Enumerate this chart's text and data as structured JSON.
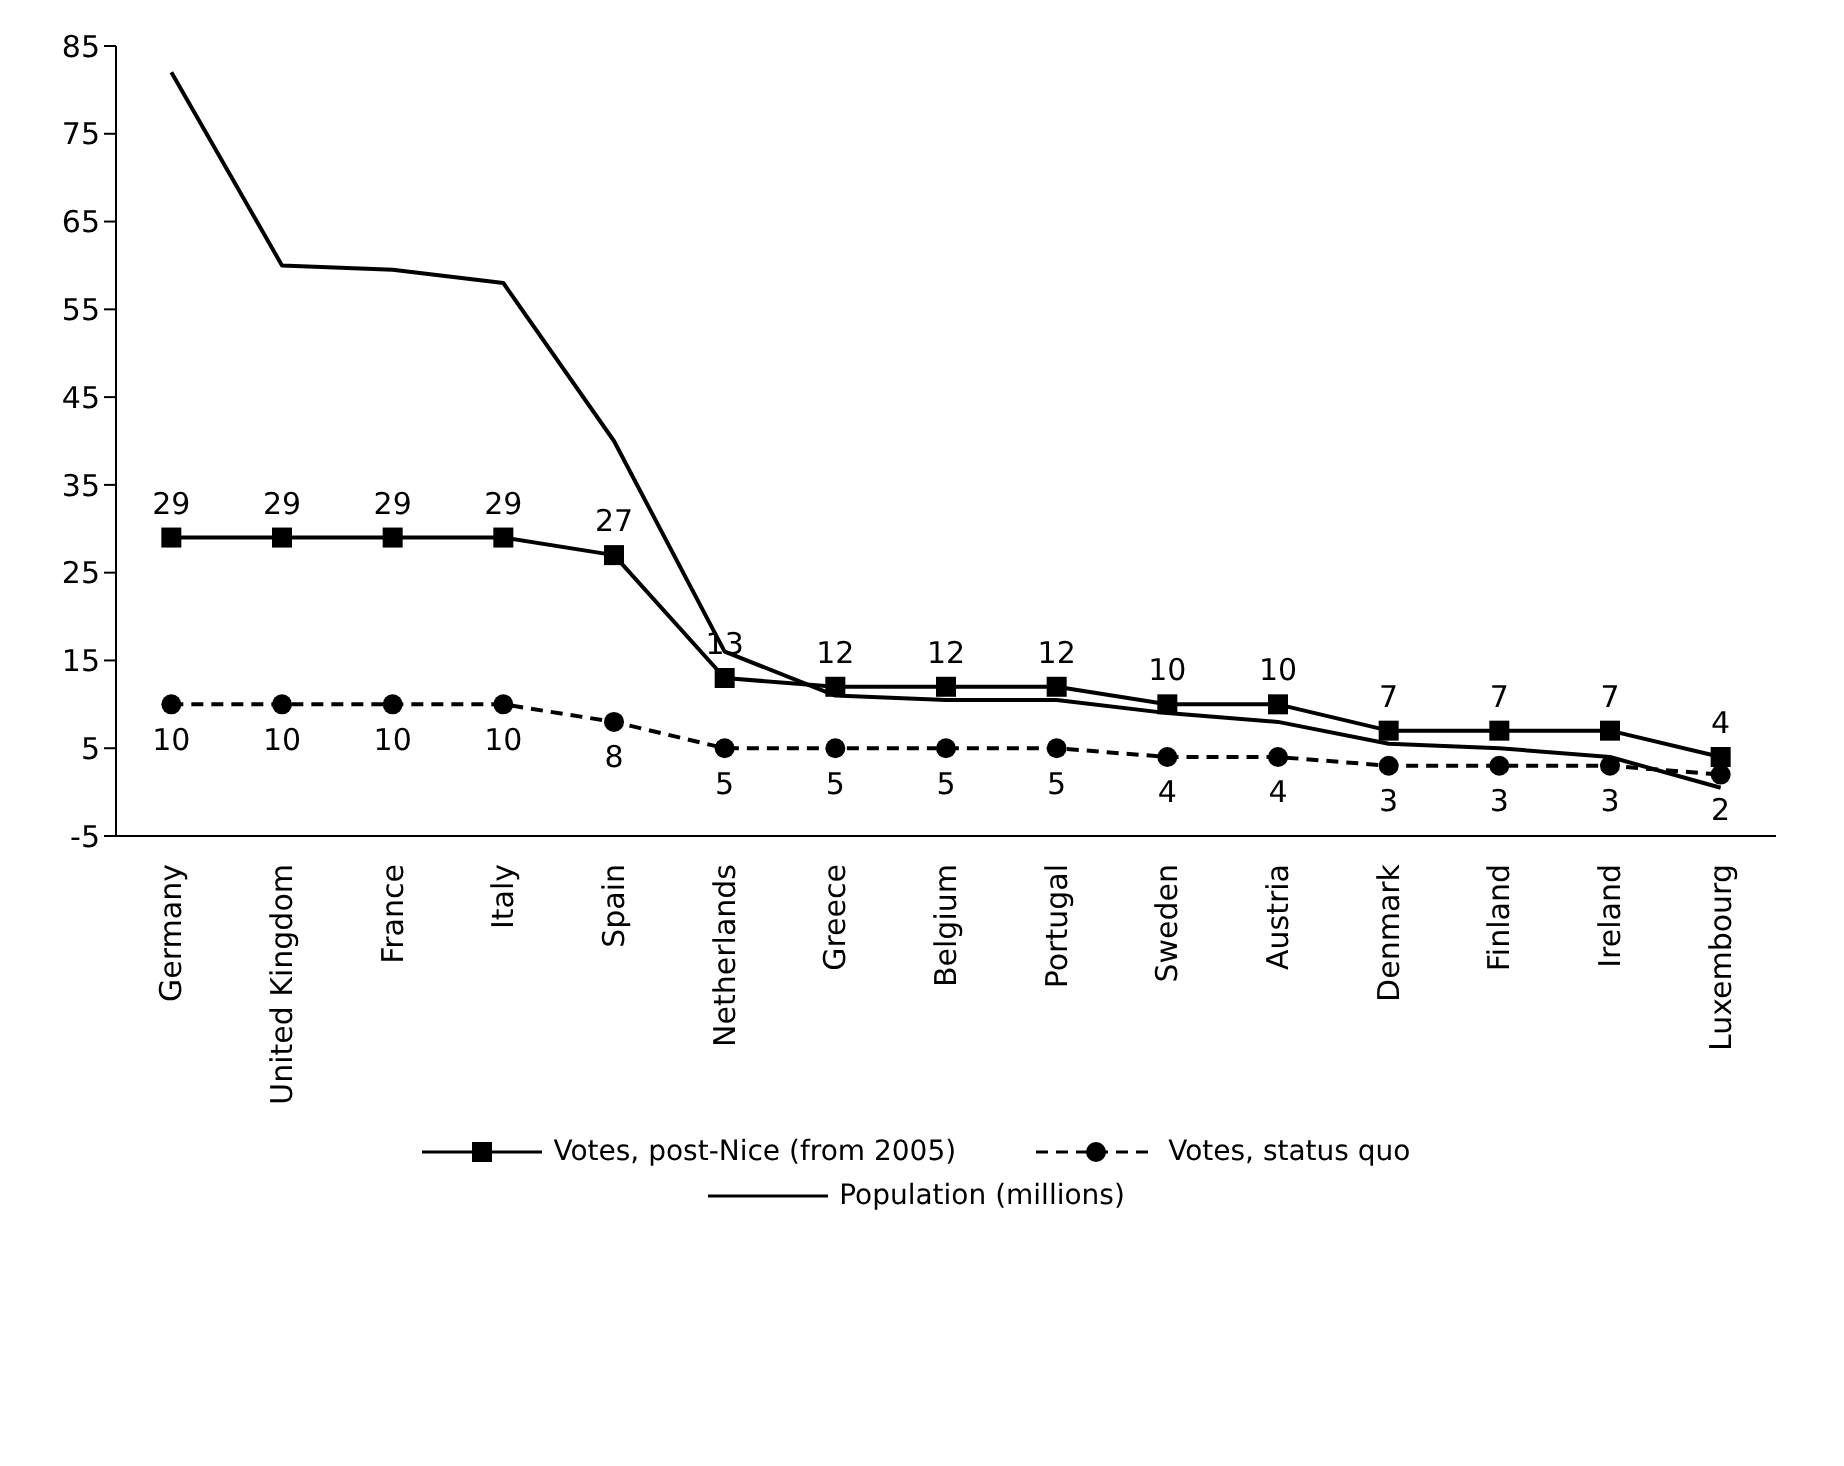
{
  "chart_data": {
    "type": "line",
    "categories": [
      "Germany",
      "United Kingdom",
      "France",
      "Italy",
      "Spain",
      "Netherlands",
      "Greece",
      "Belgium",
      "Portugal",
      "Sweden",
      "Austria",
      "Denmark",
      "Finland",
      "Ireland",
      "Luxembourg"
    ],
    "series": [
      {
        "name": "Votes, post-Nice (from 2005)",
        "color": "#000000",
        "marker": "square",
        "line_style": "solid",
        "value_labels": [
          "29",
          "29",
          "29",
          "29",
          "27",
          "13",
          "12",
          "12",
          "12",
          "10",
          "10",
          "7",
          "7",
          "7",
          "4"
        ],
        "values": [
          29,
          29,
          29,
          29,
          27,
          13,
          12,
          12,
          12,
          10,
          10,
          7,
          7,
          7,
          4
        ]
      },
      {
        "name": "Votes, status quo",
        "color": "#000000",
        "marker": "circle",
        "line_style": "dashed",
        "value_labels": [
          "10",
          "10",
          "10",
          "10",
          "8",
          "5",
          "5",
          "5",
          "5",
          "4",
          "4",
          "3",
          "3",
          "3",
          "2"
        ],
        "values": [
          10,
          10,
          10,
          10,
          8,
          5,
          5,
          5,
          5,
          4,
          4,
          3,
          3,
          3,
          2
        ]
      },
      {
        "name": "Population (millions)",
        "color": "#000000",
        "marker": "none",
        "line_style": "solid",
        "values": [
          82,
          60,
          59.5,
          58,
          40,
          16,
          11,
          10.5,
          10.5,
          9,
          8,
          5.5,
          5,
          4,
          0.5
        ]
      }
    ],
    "ylim": [
      -5,
      85
    ],
    "yticks": [
      -5,
      5,
      15,
      25,
      35,
      45,
      55,
      65,
      75,
      85
    ],
    "grid": false,
    "legend": "bottom"
  }
}
